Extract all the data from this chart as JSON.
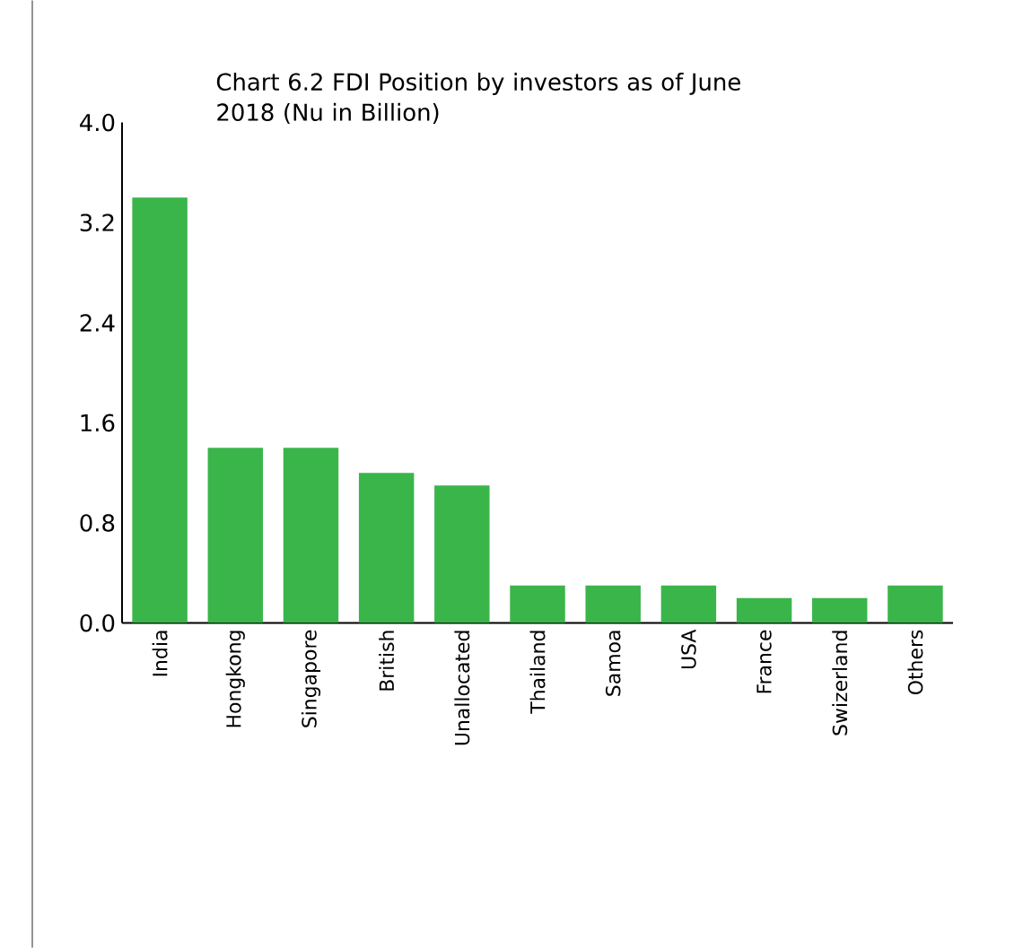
{
  "chart_data": {
    "type": "bar",
    "title": "Chart 6.2 FDI Position by investors as of June 2018 (Nu in Billion)",
    "categories": [
      "India",
      "Hongkong",
      "Singapore",
      "British",
      "Unallocated",
      "Thailand",
      "Samoa",
      "USA",
      "France",
      "Swizerland",
      "Others"
    ],
    "values": [
      3.4,
      1.4,
      1.4,
      1.2,
      1.1,
      0.3,
      0.3,
      0.3,
      0.2,
      0.2,
      0.3
    ],
    "color": "#3ab54a",
    "ylim": [
      0,
      4.0
    ],
    "yticks": [
      {
        "value": 0,
        "label": "0.0"
      },
      {
        "value": 0.8,
        "label": "0.8"
      },
      {
        "value": 1.6,
        "label": "1.6"
      },
      {
        "value": 2.4,
        "label": "2.4"
      },
      {
        "value": 3.2,
        "label": "3.2"
      },
      {
        "value": 4.0,
        "label": "4.0"
      }
    ]
  }
}
